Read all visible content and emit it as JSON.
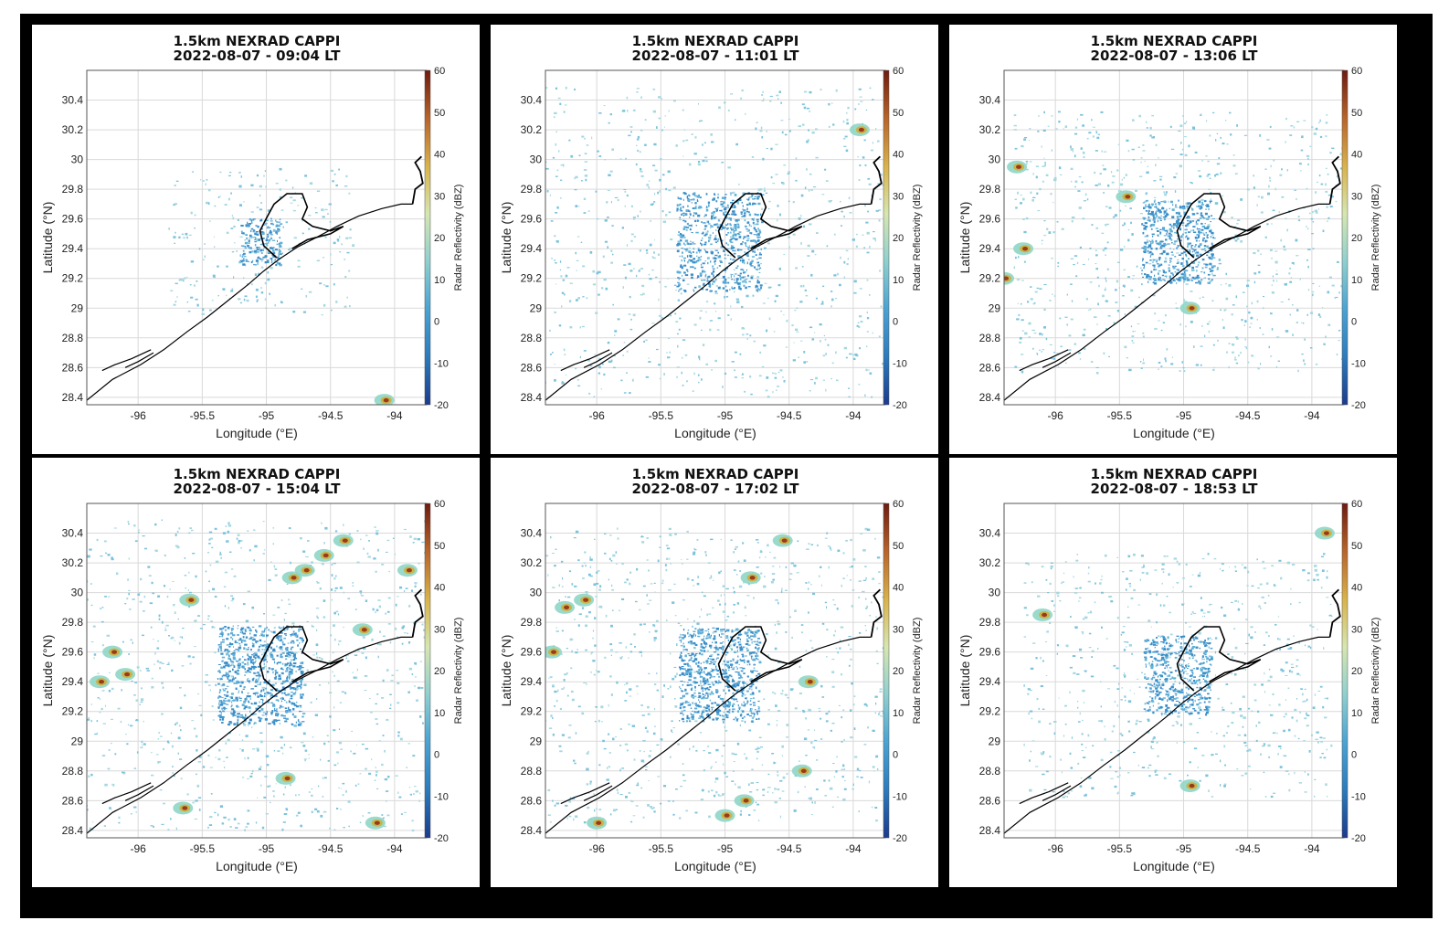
{
  "figure": {
    "panel_titles": [
      {
        "line1": "1.5km NEXRAD CAPPI",
        "line2": "2022-08-07 - 09:04 LT"
      },
      {
        "line1": "1.5km NEXRAD CAPPI",
        "line2": "2022-08-07 - 11:01 LT"
      },
      {
        "line1": "1.5km NEXRAD CAPPI",
        "line2": "2022-08-07 - 13:06 LT"
      },
      {
        "line1": "1.5km NEXRAD CAPPI",
        "line2": "2022-08-07 - 15:04 LT"
      },
      {
        "line1": "1.5km NEXRAD CAPPI",
        "line2": "2022-08-07 - 17:02 LT"
      },
      {
        "line1": "1.5km NEXRAD CAPPI",
        "line2": "2022-08-07 - 18:53 LT"
      }
    ],
    "x_label": "Longitude (°E)",
    "y_label": "Latitude (°N)",
    "colorbar_label": "Radar Reflectivity (dBZ)",
    "x_ticks": [
      "-96",
      "-95.5",
      "-95",
      "-94.5",
      "-94"
    ],
    "y_ticks": [
      "28.4",
      "28.6",
      "28.8",
      "29",
      "29.2",
      "29.4",
      "29.6",
      "29.8",
      "30",
      "30.2",
      "30.4"
    ],
    "colorbar_ticks": [
      "60",
      "50",
      "40",
      "30",
      "20",
      "10",
      "0",
      "-10",
      "-20"
    ],
    "lon_range": [
      -96.4,
      -93.75
    ],
    "lat_range": [
      28.35,
      30.6
    ],
    "dbz_range": [
      -20,
      60
    ],
    "colors": {
      "frame": "#000000",
      "coast": "#000000",
      "grid": "#d9d9d9",
      "colorbar_stops": [
        "#1b3b8c",
        "#2b7bbd",
        "#4aa3d3",
        "#8fd0cf",
        "#d6e6b0",
        "#d9b24a",
        "#b8642a",
        "#6e1b10"
      ]
    }
  }
}
